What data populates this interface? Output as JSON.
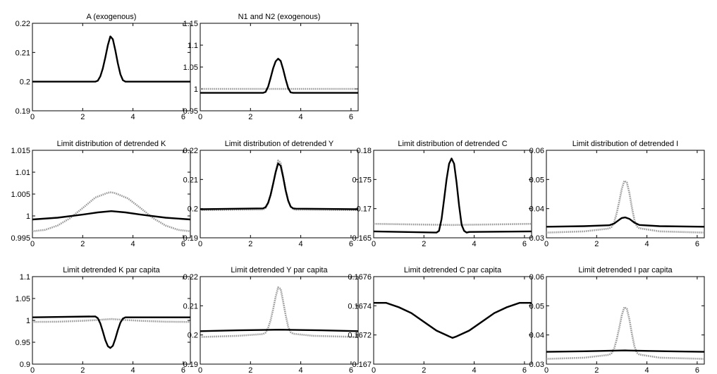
{
  "figure": {
    "style": {
      "solid_color": "#000000",
      "dotted_color": "#9a9a9a"
    }
  },
  "chart_data": [
    {
      "id": "A",
      "type": "line",
      "title": "A (exogenous)",
      "xlim": [
        0,
        6.2832
      ],
      "ylim": [
        0.19,
        0.22
      ],
      "xticks": [
        0,
        2,
        4,
        6
      ],
      "xtick_labels": [
        "0",
        "2",
        "4",
        "6"
      ],
      "yticks": [
        0.19,
        0.2,
        0.21,
        0.22
      ],
      "ytick_labels": [
        "0.19",
        "0.2",
        "0.21",
        "0.22"
      ],
      "series": [
        {
          "style": "solid",
          "x": [
            0,
            2.5,
            2.6,
            2.7,
            2.8,
            2.9,
            3.0,
            3.1,
            3.2,
            3.3,
            3.4,
            3.5,
            3.6,
            3.7,
            3.8,
            6.28
          ],
          "y": [
            0.2,
            0.2,
            0.2003,
            0.2018,
            0.2045,
            0.2083,
            0.2125,
            0.2155,
            0.2145,
            0.2107,
            0.2062,
            0.2025,
            0.2005,
            0.2,
            0.2,
            0.2
          ]
        }
      ]
    },
    {
      "id": "N",
      "type": "line",
      "title": "N1 and N2 (exogenous)",
      "xlim": [
        0,
        6.2832
      ],
      "ylim": [
        0.95,
        1.15
      ],
      "xticks": [
        0,
        2,
        4,
        6
      ],
      "xtick_labels": [
        "0",
        "2",
        "4",
        "6"
      ],
      "yticks": [
        0.95,
        1,
        1.05,
        1.1,
        1.15
      ],
      "ytick_labels": [
        "0.95",
        "1",
        "1.05",
        "1.1",
        "1.15"
      ],
      "series": [
        {
          "style": "dotted",
          "x": [
            0,
            6.28
          ],
          "y": [
            1.0,
            1.0
          ]
        },
        {
          "style": "solid",
          "x": [
            0,
            2.5,
            2.6,
            2.7,
            2.8,
            2.9,
            3.0,
            3.1,
            3.2,
            3.3,
            3.4,
            3.5,
            3.6,
            3.7,
            6.28
          ],
          "y": [
            0.991,
            0.991,
            0.993,
            1.005,
            1.025,
            1.047,
            1.063,
            1.069,
            1.064,
            1.045,
            1.022,
            1.002,
            0.992,
            0.991,
            0.991
          ]
        }
      ]
    },
    {
      "id": "K",
      "type": "line",
      "title": "Limit distribution of detrended K",
      "xlim": [
        0,
        6.2832
      ],
      "ylim": [
        0.995,
        1.015
      ],
      "xticks": [
        0,
        2,
        4,
        6
      ],
      "xtick_labels": [
        "0",
        "2",
        "4",
        "6"
      ],
      "yticks": [
        0.995,
        1,
        1.005,
        1.01,
        1.015
      ],
      "ytick_labels": [
        "0.995",
        "1",
        "1.005",
        "1.01",
        "1.015"
      ],
      "series": [
        {
          "style": "dotted",
          "x": [
            0,
            0.5,
            1.0,
            1.5,
            2.0,
            2.5,
            3.0,
            3.14,
            3.3,
            3.8,
            4.3,
            4.8,
            5.3,
            5.8,
            6.28
          ],
          "y": [
            0.9965,
            0.9968,
            0.9978,
            0.9995,
            1.0018,
            1.0042,
            1.0053,
            1.0054,
            1.0052,
            1.004,
            1.0018,
            0.9995,
            0.9978,
            0.9968,
            0.9965
          ]
        },
        {
          "style": "solid",
          "x": [
            0,
            1.0,
            2.0,
            2.6,
            3.14,
            3.7,
            4.3,
            5.3,
            6.28
          ],
          "y": [
            0.9992,
            0.9996,
            1.0003,
            1.0008,
            1.0011,
            1.0008,
            1.0003,
            0.9996,
            0.9992
          ]
        }
      ]
    },
    {
      "id": "Y",
      "type": "line",
      "title": "Limit distribution of detrended Y",
      "xlim": [
        0,
        6.2832
      ],
      "ylim": [
        0.19,
        0.22
      ],
      "xticks": [
        0,
        2,
        4,
        6
      ],
      "xtick_labels": [
        "0",
        "2",
        "4",
        "6"
      ],
      "yticks": [
        0.19,
        0.2,
        0.21,
        0.22
      ],
      "ytick_labels": [
        "0.19",
        "0.2",
        "0.21",
        "0.22"
      ],
      "series": [
        {
          "style": "dotted",
          "x": [
            0,
            2.5,
            2.6,
            2.7,
            2.8,
            2.9,
            3.0,
            3.1,
            3.2,
            3.3,
            3.4,
            3.5,
            3.6,
            3.7,
            3.8,
            6.28
          ],
          "y": [
            0.1995,
            0.1997,
            0.2002,
            0.2018,
            0.2045,
            0.2084,
            0.2127,
            0.2165,
            0.2158,
            0.2113,
            0.2065,
            0.2027,
            0.2006,
            0.1998,
            0.1996,
            0.1995
          ]
        },
        {
          "style": "solid",
          "x": [
            0,
            2.5,
            2.6,
            2.7,
            2.8,
            2.9,
            3.0,
            3.1,
            3.2,
            3.3,
            3.4,
            3.5,
            3.6,
            3.7,
            3.8,
            6.28
          ],
          "y": [
            0.1998,
            0.2001,
            0.2005,
            0.202,
            0.2047,
            0.2085,
            0.2125,
            0.2155,
            0.2147,
            0.2108,
            0.2062,
            0.2027,
            0.2007,
            0.2001,
            0.2,
            0.1998
          ]
        }
      ]
    },
    {
      "id": "C",
      "type": "line",
      "title": "Limit distribution of detrended C",
      "xlim": [
        0,
        6.2832
      ],
      "ylim": [
        0.165,
        0.18
      ],
      "xticks": [
        0,
        2,
        4,
        6
      ],
      "xtick_labels": [
        "0",
        "2",
        "4",
        "6"
      ],
      "yticks": [
        0.165,
        0.17,
        0.175,
        0.18
      ],
      "ytick_labels": [
        "0.165",
        "0.17",
        "0.175",
        "0.18"
      ],
      "series": [
        {
          "style": "dotted",
          "x": [
            0,
            1.5,
            3.14,
            4.8,
            6.28
          ],
          "y": [
            0.1674,
            0.1673,
            0.1672,
            0.1673,
            0.1674
          ]
        },
        {
          "style": "solid",
          "x": [
            0,
            2.5,
            2.6,
            2.7,
            2.8,
            2.9,
            3.0,
            3.1,
            3.2,
            3.3,
            3.4,
            3.5,
            3.6,
            3.7,
            3.8,
            6.28
          ],
          "y": [
            0.1661,
            0.1659,
            0.1662,
            0.1682,
            0.1715,
            0.175,
            0.1777,
            0.1786,
            0.1777,
            0.1745,
            0.1705,
            0.1672,
            0.1662,
            0.1659,
            0.166,
            0.1661
          ]
        }
      ]
    },
    {
      "id": "I",
      "type": "line",
      "title": "Limit distribution of detrended I",
      "xlim": [
        0,
        6.2832
      ],
      "ylim": [
        0.03,
        0.06
      ],
      "xticks": [
        0,
        2,
        4,
        6
      ],
      "xtick_labels": [
        "0",
        "2",
        "4",
        "6"
      ],
      "yticks": [
        0.03,
        0.04,
        0.05,
        0.06
      ],
      "ytick_labels": [
        "0.03",
        "0.04",
        "0.05",
        "0.06"
      ],
      "series": [
        {
          "style": "dotted",
          "x": [
            0,
            1.5,
            2.5,
            2.6,
            2.7,
            2.8,
            2.9,
            3.0,
            3.1,
            3.2,
            3.3,
            3.4,
            3.5,
            3.6,
            3.7,
            4.5,
            6.28
          ],
          "y": [
            0.0318,
            0.0322,
            0.0332,
            0.0338,
            0.0355,
            0.0385,
            0.0425,
            0.0468,
            0.0495,
            0.049,
            0.0455,
            0.0405,
            0.0362,
            0.0339,
            0.0333,
            0.0322,
            0.0318
          ]
        },
        {
          "style": "solid",
          "x": [
            0,
            1.5,
            2.5,
            2.7,
            2.9,
            3.0,
            3.14,
            3.3,
            3.5,
            3.7,
            4.5,
            6.28
          ],
          "y": [
            0.0338,
            0.034,
            0.0343,
            0.0349,
            0.0362,
            0.0368,
            0.037,
            0.0365,
            0.0352,
            0.0344,
            0.034,
            0.0338
          ]
        }
      ]
    },
    {
      "id": "Kpc",
      "type": "line",
      "title": "Limit detrended K par capita",
      "xlim": [
        0,
        6.2832
      ],
      "ylim": [
        0.9,
        1.1
      ],
      "xticks": [
        0,
        2,
        4,
        6
      ],
      "xtick_labels": [
        "0",
        "2",
        "4",
        "6"
      ],
      "yticks": [
        0.9,
        0.95,
        1,
        1.05,
        1.1
      ],
      "ytick_labels": [
        "0.9",
        "0.95",
        "1",
        "1.05",
        "1.1"
      ],
      "series": [
        {
          "style": "dotted",
          "x": [
            0,
            1.0,
            2.0,
            2.6,
            3.14,
            3.7,
            4.3,
            5.3,
            6.28
          ],
          "y": [
            0.9965,
            0.997,
            0.999,
            1.001,
            1.003,
            1.001,
            0.999,
            0.997,
            0.9965
          ]
        },
        {
          "style": "solid",
          "x": [
            0,
            2.5,
            2.6,
            2.7,
            2.8,
            2.9,
            3.0,
            3.1,
            3.2,
            3.3,
            3.4,
            3.5,
            3.6,
            3.7,
            6.28
          ],
          "y": [
            1.007,
            1.009,
            1.005,
            0.993,
            0.975,
            0.955,
            0.941,
            0.937,
            0.942,
            0.958,
            0.978,
            0.995,
            1.004,
            1.007,
            1.007
          ]
        }
      ]
    },
    {
      "id": "Ypc",
      "type": "line",
      "title": "Limit detrended Y par capita",
      "xlim": [
        0,
        6.2832
      ],
      "ylim": [
        0.19,
        0.22
      ],
      "xticks": [
        0,
        2,
        4,
        6
      ],
      "xtick_labels": [
        "0",
        "2",
        "4",
        "6"
      ],
      "yticks": [
        0.19,
        0.2,
        0.21,
        0.22
      ],
      "ytick_labels": [
        "0.19",
        "0.2",
        "0.21",
        "0.22"
      ],
      "series": [
        {
          "style": "dotted",
          "x": [
            0,
            1.5,
            2.5,
            2.6,
            2.7,
            2.8,
            2.9,
            3.0,
            3.1,
            3.2,
            3.3,
            3.4,
            3.5,
            3.6,
            3.7,
            4.5,
            6.28
          ],
          "y": [
            0.1993,
            0.1997,
            0.2003,
            0.2008,
            0.2024,
            0.205,
            0.2088,
            0.2131,
            0.2163,
            0.2158,
            0.2115,
            0.2068,
            0.2028,
            0.2009,
            0.2004,
            0.1997,
            0.1993
          ]
        },
        {
          "style": "solid",
          "x": [
            0,
            1.5,
            3.14,
            4.8,
            6.28
          ],
          "y": [
            0.2013,
            0.2016,
            0.2018,
            0.2016,
            0.2013
          ]
        }
      ]
    },
    {
      "id": "Cpc",
      "type": "line",
      "title": "Limit detrended C par capita",
      "xlim": [
        0,
        6.2832
      ],
      "ylim": [
        0.167,
        0.1676
      ],
      "xticks": [
        0,
        2,
        4,
        6
      ],
      "xtick_labels": [
        "0",
        "2",
        "4",
        "6"
      ],
      "yticks": [
        0.167,
        0.1672,
        0.1674,
        0.1676
      ],
      "ytick_labels": [
        "0.167",
        "0.1672",
        "0.1674",
        "0.1676"
      ],
      "series": [
        {
          "style": "dotted",
          "x": [
            0,
            0.5,
            1.0,
            1.5,
            2.0,
            2.5,
            3.0,
            3.14,
            3.3,
            3.8,
            4.3,
            4.8,
            5.3,
            5.8,
            6.28
          ],
          "y": [
            0.16742,
            0.16742,
            0.16739,
            0.16735,
            0.16729,
            0.16723,
            0.16719,
            0.16718,
            0.16719,
            0.16723,
            0.16729,
            0.16735,
            0.16739,
            0.16742,
            0.16742
          ]
        },
        {
          "style": "solid",
          "x": [
            0,
            0.5,
            1.0,
            1.5,
            2.0,
            2.5,
            3.0,
            3.14,
            3.3,
            3.8,
            4.3,
            4.8,
            5.3,
            5.8,
            6.28
          ],
          "y": [
            0.16742,
            0.16742,
            0.16739,
            0.16735,
            0.16729,
            0.16723,
            0.16719,
            0.16718,
            0.16719,
            0.16723,
            0.16729,
            0.16735,
            0.16739,
            0.16742,
            0.16742
          ]
        }
      ]
    },
    {
      "id": "Ipc",
      "type": "line",
      "title": "Limit detrended I par capita",
      "xlim": [
        0,
        6.2832
      ],
      "ylim": [
        0.03,
        0.06
      ],
      "xticks": [
        0,
        2,
        4,
        6
      ],
      "xtick_labels": [
        "0",
        "2",
        "4",
        "6"
      ],
      "yticks": [
        0.03,
        0.04,
        0.05,
        0.06
      ],
      "ytick_labels": [
        "0.03",
        "0.04",
        "0.05",
        "0.06"
      ],
      "series": [
        {
          "style": "dotted",
          "x": [
            0,
            1.5,
            2.5,
            2.6,
            2.7,
            2.8,
            2.9,
            3.0,
            3.1,
            3.2,
            3.3,
            3.4,
            3.5,
            3.6,
            3.7,
            4.5,
            6.28
          ],
          "y": [
            0.0318,
            0.0322,
            0.0332,
            0.0338,
            0.0355,
            0.0385,
            0.0425,
            0.0468,
            0.0495,
            0.049,
            0.0455,
            0.0405,
            0.0362,
            0.0339,
            0.0333,
            0.0322,
            0.0318
          ]
        },
        {
          "style": "solid",
          "x": [
            0,
            1.5,
            3.14,
            4.8,
            6.28
          ],
          "y": [
            0.0342,
            0.0344,
            0.0347,
            0.0344,
            0.0342
          ]
        }
      ]
    }
  ]
}
